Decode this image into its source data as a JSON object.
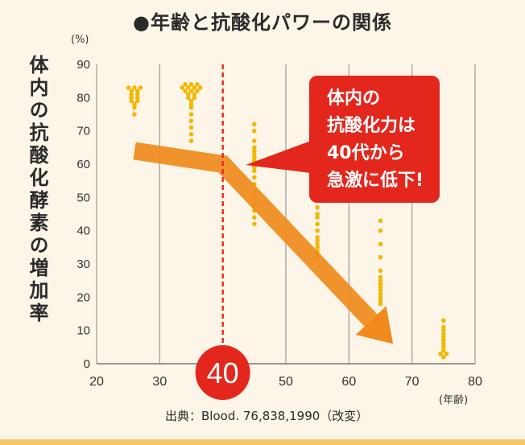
{
  "title": "●年齢と抗酸化パワーの関係",
  "callout": {
    "lines": [
      "体内の",
      "抗酸化力は",
      "40代から",
      "急激に低下!"
    ]
  },
  "source": "出典：Blood. 76,838,1990（改変）",
  "colors": {
    "dots": "#f2b705",
    "arrow": "#f08a1c",
    "callout": "#e3271c",
    "marker": "#e3271c",
    "grid": "#9a9a9a"
  },
  "chart_data": {
    "type": "scatter",
    "title": "●年齢と抗酸化パワーの関係",
    "xlabel": "(年齢)",
    "ylabel": "体内の抗酸化酵素の増加率",
    "y_unit": "(%)",
    "xlim": [
      20,
      80
    ],
    "ylim": [
      0,
      90
    ],
    "x_ticks": [
      "20",
      "30",
      "40",
      "50",
      "60",
      "70",
      "80"
    ],
    "y_ticks": [
      "0",
      "10",
      "20",
      "30",
      "40",
      "50",
      "60",
      "70",
      "80",
      "90"
    ],
    "highlight_x": {
      "value": 40,
      "label": "40"
    },
    "trend_arrow": [
      [
        26,
        64
      ],
      [
        40,
        60
      ],
      [
        67,
        6
      ]
    ],
    "groups": [
      {
        "x": 26,
        "values": [
          83,
          83,
          83,
          82,
          82,
          81,
          81,
          80,
          80,
          79,
          79,
          78,
          77,
          75
        ]
      },
      {
        "x": 35,
        "values": [
          84,
          84,
          84,
          83,
          83,
          83,
          83,
          82,
          82,
          82,
          81,
          81,
          80,
          80,
          79,
          78,
          77,
          75,
          73,
          71,
          69,
          67
        ]
      },
      {
        "x": 45,
        "values": [
          72,
          70,
          67,
          65,
          64,
          63,
          62,
          61,
          60,
          59,
          58,
          56,
          54,
          52,
          50,
          48,
          46,
          44,
          42
        ]
      },
      {
        "x": 55,
        "values": [
          47,
          45,
          44,
          42,
          40,
          38,
          37,
          36,
          35,
          34,
          33,
          32
        ]
      },
      {
        "x": 65,
        "values": [
          43,
          40,
          36,
          32,
          28,
          26,
          25,
          24,
          23,
          22,
          21,
          20,
          19,
          18
        ]
      },
      {
        "x": 75,
        "values": [
          13,
          11,
          10,
          9,
          8,
          7,
          6,
          5,
          4,
          3,
          3,
          2
        ]
      }
    ]
  }
}
